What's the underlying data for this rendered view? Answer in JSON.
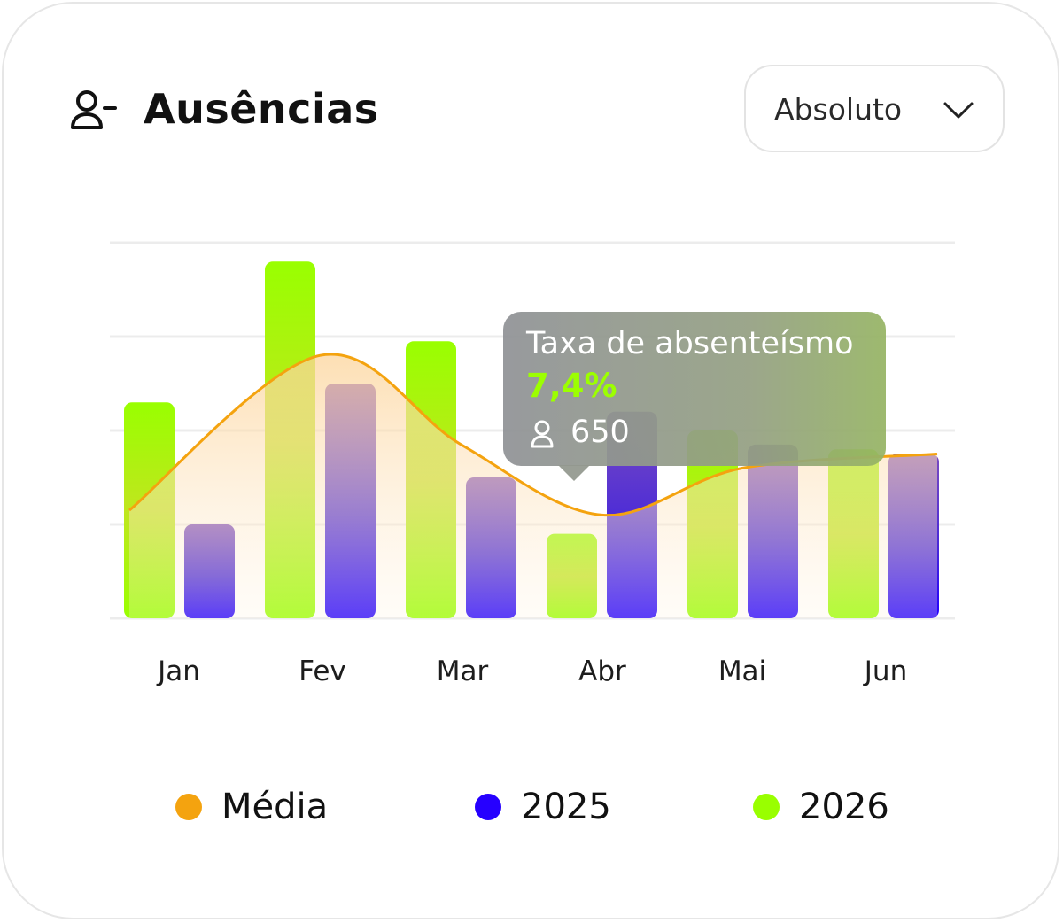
{
  "header": {
    "title": "Ausências",
    "icon": "user-minus-icon"
  },
  "dropdown": {
    "selected": "Absoluto",
    "icon": "chevron-down-icon"
  },
  "tooltip": {
    "title": "Taxa de absenteísmo",
    "rate": "7,4%",
    "count": "650",
    "count_icon": "user-icon",
    "month": "Abr"
  },
  "colors": {
    "media": "#f4a30f",
    "y2025": "#2600ff",
    "y2026": "#99ff00"
  },
  "legend": [
    {
      "label": "Média",
      "color": "#f4a30f"
    },
    {
      "label": "2025",
      "color": "#2600ff"
    },
    {
      "label": "2026",
      "color": "#99ff00"
    }
  ],
  "chart_data": {
    "type": "bar",
    "categories": [
      "Jan",
      "Fev",
      "Mar",
      "Abr",
      "Mai",
      "Jun"
    ],
    "series": [
      {
        "name": "2026",
        "type": "bar",
        "values": [
          46,
          76,
          59,
          18,
          40,
          36
        ]
      },
      {
        "name": "2025",
        "type": "bar",
        "values": [
          20,
          50,
          30,
          44,
          37,
          35
        ]
      },
      {
        "name": "Média",
        "type": "line",
        "values": [
          23,
          56,
          37,
          22,
          32,
          35
        ]
      }
    ],
    "ylim": [
      0,
      80
    ],
    "grid": true,
    "legend_position": "bottom"
  }
}
